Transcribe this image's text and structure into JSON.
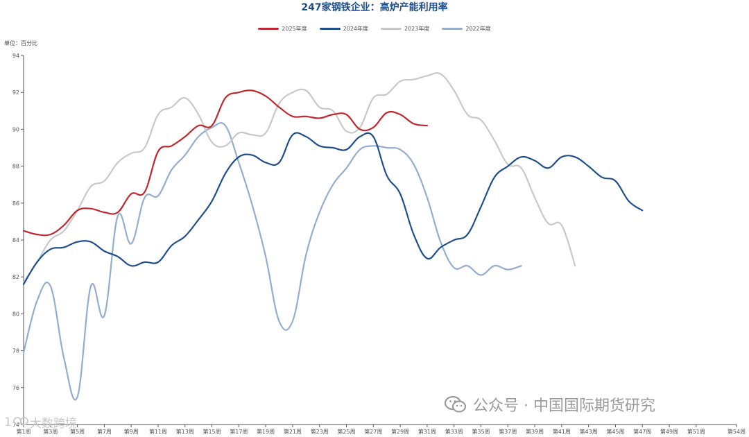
{
  "chart_data": {
    "type": "line",
    "title": "247家钢铁企业：高炉产能利用率",
    "unit_label": "单位：百分比",
    "ylim": [
      74,
      94
    ],
    "yticks": [
      74,
      76,
      78,
      80,
      82,
      84,
      86,
      88,
      90,
      92,
      94
    ],
    "xlim": [
      1,
      54
    ],
    "xticks": [
      1,
      3,
      5,
      7,
      9,
      11,
      13,
      15,
      17,
      19,
      21,
      23,
      25,
      27,
      29,
      31,
      33,
      35,
      37,
      39,
      41,
      43,
      45,
      47,
      49,
      51,
      54
    ],
    "xtick_labels": [
      "第1周",
      "第3周",
      "第5周",
      "第7周",
      "第9周",
      "第11周",
      "第13周",
      "第15周",
      "第17周",
      "第19周",
      "第21周",
      "第23周",
      "第25周",
      "第27周",
      "第29周",
      "第31周",
      "第33周",
      "第35周",
      "第37周",
      "第39周",
      "第41周",
      "第43周",
      "第45周",
      "第47周",
      "第49周",
      "第51周",
      "第54周"
    ],
    "legend_position": "top-center",
    "grid": false,
    "series": [
      {
        "name": "2025年度",
        "color": "#c0262d",
        "x": [
          1,
          2,
          3,
          4,
          5,
          6,
          7,
          8,
          9,
          10,
          11,
          12,
          13,
          14,
          15,
          16,
          17,
          18,
          19,
          20,
          21,
          22,
          23,
          24,
          25,
          26,
          27,
          28,
          29,
          30,
          31
        ],
        "values": [
          84.5,
          84.3,
          84.3,
          84.8,
          85.6,
          85.7,
          85.5,
          85.5,
          86.5,
          86.6,
          88.8,
          89.1,
          89.6,
          90.2,
          90.2,
          91.7,
          92.0,
          92.1,
          91.8,
          91.2,
          90.7,
          90.7,
          90.6,
          90.8,
          90.8,
          90.0,
          90.1,
          90.9,
          90.8,
          90.3,
          90.2
        ]
      },
      {
        "name": "2024年度",
        "color": "#1f4e8c",
        "x": [
          1,
          2,
          3,
          4,
          5,
          6,
          7,
          8,
          9,
          10,
          11,
          12,
          13,
          14,
          15,
          16,
          17,
          18,
          19,
          20,
          21,
          22,
          23,
          24,
          25,
          26,
          27,
          28,
          29,
          30,
          31,
          32,
          33,
          34,
          35,
          36,
          37,
          38,
          39,
          40,
          41,
          42,
          43,
          44,
          45,
          46,
          47,
          48,
          49,
          50,
          51,
          52
        ],
        "values": [
          81.6,
          82.8,
          83.5,
          83.6,
          83.9,
          83.9,
          83.4,
          83.1,
          82.6,
          82.8,
          82.8,
          83.7,
          84.2,
          85.1,
          86.1,
          87.6,
          88.5,
          88.6,
          88.2,
          88.2,
          89.7,
          89.6,
          89.1,
          89.0,
          88.9,
          89.6,
          89.6,
          87.5,
          86.5,
          84.3,
          83.0,
          83.6,
          84.0,
          84.3,
          85.8,
          87.4,
          88.0,
          88.5,
          88.3,
          87.9,
          88.5,
          88.5,
          88.0,
          87.4,
          87.2,
          86.1,
          85.6,
          null,
          null,
          null,
          null,
          null
        ]
      },
      {
        "name": "2023年度",
        "color": "#c8c8c8",
        "x": [
          1,
          2,
          3,
          4,
          5,
          6,
          7,
          8,
          9,
          10,
          11,
          12,
          13,
          14,
          15,
          16,
          17,
          18,
          19,
          20,
          21,
          22,
          23,
          24,
          25,
          26,
          27,
          28,
          29,
          30,
          31,
          32,
          33,
          34,
          35,
          36,
          37,
          38,
          39,
          40,
          41,
          42,
          43,
          44,
          45,
          46,
          47,
          48,
          49,
          50,
          51,
          52
        ],
        "values": [
          81.7,
          82.8,
          84.0,
          84.5,
          85.6,
          86.9,
          87.2,
          88.2,
          88.7,
          89.0,
          90.8,
          91.2,
          91.7,
          90.8,
          89.3,
          89.1,
          89.8,
          89.7,
          89.8,
          91.4,
          92.0,
          92.1,
          91.2,
          91.0,
          89.9,
          90.1,
          91.7,
          91.9,
          92.6,
          92.7,
          92.9,
          93.0,
          92.1,
          90.8,
          90.5,
          89.4,
          88.1,
          87.9,
          86.3,
          84.9,
          84.8,
          82.6,
          null,
          null,
          null,
          null,
          null,
          null,
          null,
          null,
          null,
          null
        ]
      },
      {
        "name": "2022年度",
        "color": "#93acd0",
        "x": [
          1,
          2,
          3,
          4,
          5,
          6,
          7,
          8,
          9,
          10,
          11,
          12,
          13,
          14,
          15,
          16,
          17,
          18,
          19,
          20,
          21,
          22,
          23,
          24,
          25,
          26,
          27,
          28,
          29,
          30,
          31,
          32,
          33,
          34,
          35,
          36,
          37,
          38,
          39,
          40,
          41,
          42,
          43,
          44,
          45,
          46,
          47,
          48,
          49,
          50,
          51,
          52
        ],
        "values": [
          77.9,
          80.7,
          81.5,
          77.6,
          75.5,
          81.5,
          79.9,
          85.3,
          83.8,
          86.3,
          86.4,
          87.8,
          88.6,
          89.6,
          90.1,
          90.2,
          88.2,
          85.9,
          83.1,
          79.6,
          79.6,
          83.2,
          85.5,
          87.0,
          87.9,
          88.9,
          89.1,
          89.0,
          88.9,
          88.1,
          86.3,
          83.9,
          82.5,
          82.6,
          82.1,
          82.6,
          82.4,
          82.6,
          null,
          null,
          null,
          null,
          null,
          null,
          null,
          null,
          null,
          null,
          null,
          null,
          null,
          null
        ]
      }
    ]
  },
  "watermark": {
    "main": "公众号 · 中国国际期货研究",
    "small_prefix": "1",
    "small_text": "大数跨境"
  }
}
